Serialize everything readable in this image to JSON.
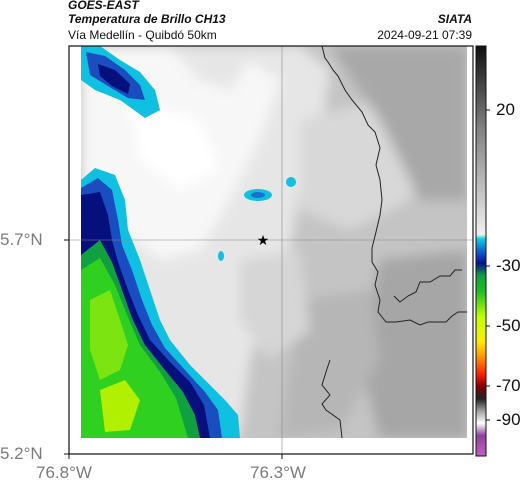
{
  "header": {
    "satellite": "GOES-EAST",
    "product": "Temperatura de Brillo CH13",
    "organization": "SIATA",
    "location": "Vía Medellín - Quibdó 50km",
    "datetime": "2024-09-21 07:39"
  },
  "axes": {
    "lat_labels": [
      "5.7°N",
      "5.2°N"
    ],
    "lon_labels": [
      "76.8°W",
      "76.3°W"
    ]
  },
  "colorbar": {
    "tick_labels": [
      "20",
      "-30",
      "-50",
      "-70",
      "-90"
    ]
  },
  "marker": {
    "name": "star-marker"
  },
  "colors": {
    "cold_magenta": "#b040b0",
    "deep_blue": "#00108a",
    "cyan": "#10b8d8",
    "green": "#20d020",
    "yellow_green": "#b0f000",
    "warm_gray": "#bcbcbc",
    "border_line": "#222222"
  }
}
